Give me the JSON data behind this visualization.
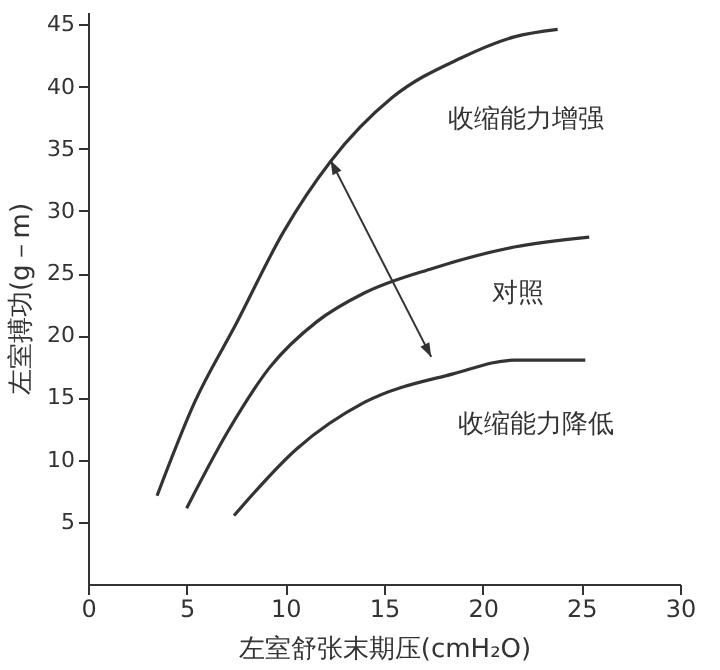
{
  "chart_data": {
    "type": "line",
    "xlabel": "左室舒张末期压(cmH₂O)",
    "ylabel": "左室搏功(g－m)",
    "xlim": [
      0,
      30
    ],
    "ylim": [
      0,
      46
    ],
    "xticks": [
      0,
      5,
      10,
      15,
      20,
      25,
      30
    ],
    "yticks": [
      5,
      10,
      15,
      20,
      25,
      30,
      35,
      40,
      45
    ],
    "grid": false,
    "legend": false,
    "marker": "none",
    "line_style": "solid",
    "series": [
      {
        "name": "收缩能力增强",
        "color": "#333333",
        "x": [
          3.5,
          5.4,
          7.5,
          9.9,
          12.3,
          15.4,
          18.9,
          21.6,
          23.8
        ],
        "values": [
          7.1,
          14.6,
          20.9,
          28.3,
          34,
          39.1,
          42.3,
          44,
          44.6
        ]
      },
      {
        "name": "对照",
        "color": "#333333",
        "x": [
          5,
          7.1,
          9.2,
          11.6,
          14,
          17.5,
          21.6,
          25.4
        ],
        "values": [
          6.1,
          12.3,
          17.4,
          21.1,
          23.4,
          25.4,
          27.1,
          27.9
        ]
      },
      {
        "name": "收缩能力降低",
        "color": "#333333",
        "x": [
          7.4,
          10.6,
          14,
          18.5,
          21.6,
          25.2
        ],
        "values": [
          5.5,
          10.9,
          14.6,
          16.9,
          18,
          18
        ]
      }
    ]
  }
}
